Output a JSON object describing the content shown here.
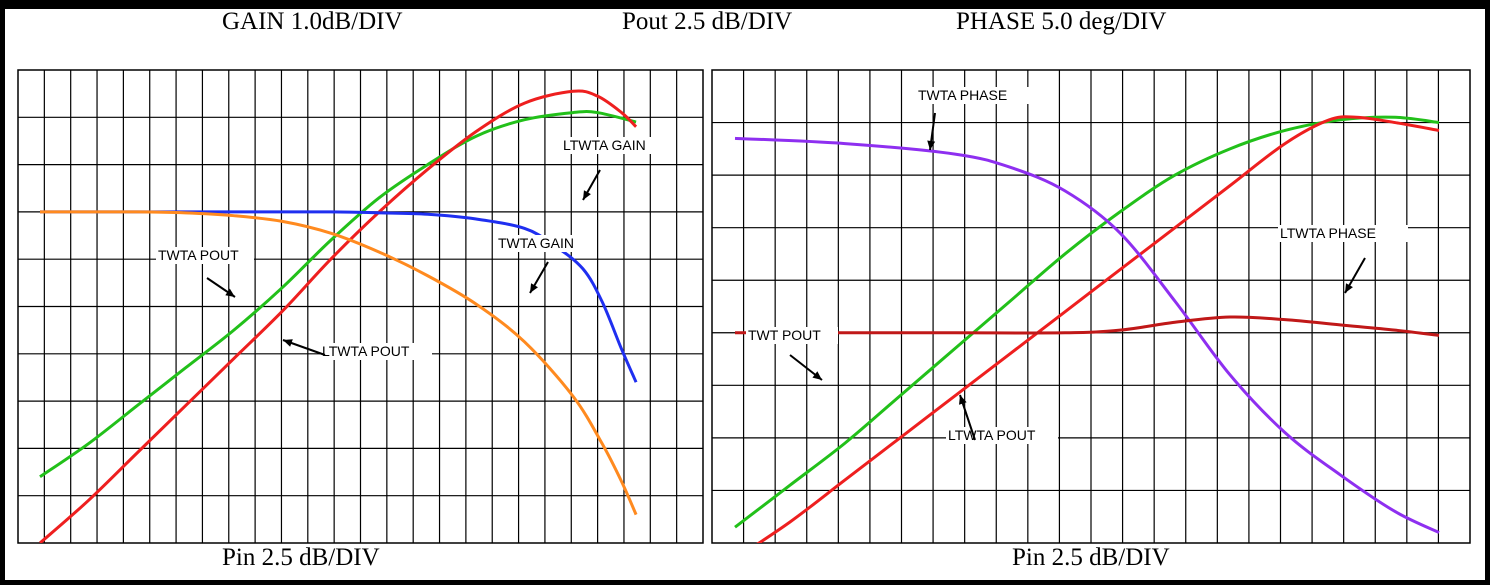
{
  "titles": {
    "gain_scale": "GAIN 1.0dB/DIV",
    "pout_scale": "Pout 2.5 dB/DIV",
    "phase_scale": "PHASE 5.0 deg/DIV",
    "pin_scale_left": "Pin  2.5 dB/DIV",
    "pin_scale_right": "Pin  2.5 dB/DIV"
  },
  "colors": {
    "green": "#22c01a",
    "red": "#ee1f1f",
    "blue": "#1f2ff0",
    "orange": "#ff8a1f",
    "purple": "#8e2ff0",
    "dark_red": "#c01818",
    "grid": "#000000"
  },
  "chart_data": [
    {
      "type": "line",
      "xlabel": "Pin  2.5 dB/DIV",
      "ylabel": "GAIN 1.0dB/DIV / Pout 2.5 dB/DIV",
      "xlim": [
        0,
        13
      ],
      "ylim": [
        0,
        10
      ],
      "grid": true,
      "grid_divisions": {
        "x": 26,
        "y": 10
      },
      "series": [
        {
          "name": "TWTA POUT",
          "color": "green",
          "x": [
            0,
            1,
            2,
            3,
            4,
            5,
            6,
            7,
            8,
            9,
            10,
            11,
            11.5,
            12.3
          ],
          "y": [
            1.4,
            2.1,
            2.9,
            3.7,
            4.5,
            5.4,
            6.4,
            7.3,
            8.0,
            8.6,
            8.95,
            9.1,
            9.1,
            8.9
          ]
        },
        {
          "name": "LTWTA POUT",
          "color": "red",
          "x": [
            0,
            1,
            2,
            3,
            4,
            5,
            6,
            7,
            8,
            9,
            10,
            11,
            11.5,
            12.0,
            12.3
          ],
          "y": [
            0.0,
            0.9,
            1.9,
            2.9,
            3.9,
            4.9,
            6.0,
            7.0,
            7.9,
            8.7,
            9.3,
            9.55,
            9.45,
            9.1,
            8.8
          ]
        },
        {
          "name": "LTWTA GAIN",
          "color": "blue",
          "x": [
            0,
            2,
            4,
            6,
            7,
            8,
            9,
            10,
            10.6,
            11.2,
            11.6,
            12.0,
            12.3
          ],
          "y": [
            7.0,
            7.0,
            7.0,
            7.0,
            6.98,
            6.95,
            6.85,
            6.65,
            6.3,
            5.8,
            5.1,
            4.1,
            3.4
          ]
        },
        {
          "name": "TWTA GAIN",
          "color": "orange",
          "x": [
            0,
            2,
            3,
            4,
            5,
            6,
            7,
            8,
            9,
            10,
            11,
            11.6,
            12.0,
            12.3
          ],
          "y": [
            7.0,
            7.0,
            6.98,
            6.92,
            6.8,
            6.55,
            6.15,
            5.65,
            5.05,
            4.25,
            3.1,
            2.1,
            1.3,
            0.6
          ]
        }
      ]
    },
    {
      "type": "line",
      "xlabel": "Pin  2.5 dB/DIV",
      "ylabel": "PHASE 5.0 deg/DIV / Pout 2.5 dB/DIV",
      "xlim": [
        0,
        13
      ],
      "ylim": [
        0,
        9
      ],
      "grid": true,
      "grid_divisions": {
        "x": 24,
        "y": 9
      },
      "series": [
        {
          "name": "TWT POUT",
          "color": "green",
          "x": [
            0,
            1,
            2,
            3,
            4,
            5,
            6,
            7,
            8,
            9,
            10,
            11,
            12,
            12.8
          ],
          "y": [
            0.3,
            1.1,
            1.9,
            2.8,
            3.7,
            4.6,
            5.5,
            6.3,
            7.0,
            7.5,
            7.85,
            8.05,
            8.1,
            8.0
          ]
        },
        {
          "name": "LTWTA POUT",
          "color": "red",
          "x": [
            0,
            1,
            2,
            3,
            4,
            5,
            6,
            7,
            8,
            9,
            10,
            10.8,
            11.3,
            12.0,
            12.8
          ],
          "y": [
            -0.3,
            0.4,
            1.2,
            2.0,
            2.8,
            3.6,
            4.4,
            5.2,
            6.0,
            6.8,
            7.6,
            8.05,
            8.1,
            8.0,
            7.85
          ]
        },
        {
          "name": "TWTA PHASE",
          "color": "purple",
          "x": [
            0,
            2,
            4,
            5,
            6,
            7,
            8,
            9,
            10,
            11,
            12,
            12.8
          ],
          "y": [
            7.7,
            7.6,
            7.4,
            7.15,
            6.7,
            5.9,
            4.6,
            3.2,
            2.1,
            1.3,
            0.6,
            0.2
          ]
        },
        {
          "name": "LTWTA PHASE",
          "color": "dark_red",
          "x": [
            0,
            2,
            4,
            6,
            7,
            8,
            9,
            10,
            11,
            12,
            12.8
          ],
          "y": [
            4.0,
            4.0,
            4.0,
            4.0,
            4.05,
            4.2,
            4.3,
            4.25,
            4.15,
            4.05,
            3.95
          ]
        }
      ]
    }
  ],
  "annotations": {
    "left": [
      {
        "label": "LTWTA GAIN",
        "series": "LTWTA GAIN"
      },
      {
        "label": "TWTA POUT",
        "series": "TWTA POUT"
      },
      {
        "label": "TWTA GAIN",
        "series": "TWTA GAIN"
      },
      {
        "label": "LTWTA POUT",
        "series": "LTWTA POUT"
      }
    ],
    "right": [
      {
        "label": "TWTA PHASE",
        "series": "TWTA PHASE"
      },
      {
        "label": "LTWTA PHASE",
        "series": "LTWTA PHASE"
      },
      {
        "label": "TWT POUT",
        "series": "TWT POUT"
      },
      {
        "label": "LTWTA POUT",
        "series": "LTWTA POUT"
      }
    ]
  }
}
